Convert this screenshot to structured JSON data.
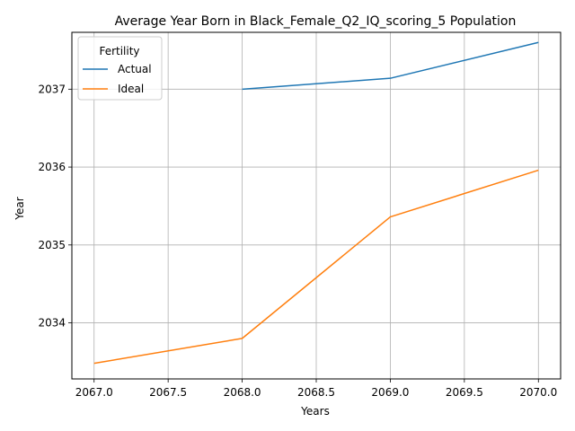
{
  "chart_data": {
    "type": "line",
    "title": "Average Year Born in Black_Female_Q2_IQ_scoring_5 Population",
    "xlabel": "Years",
    "ylabel": "Year",
    "xlim": [
      2066.85,
      2070.15
    ],
    "ylim": [
      2033.28,
      2037.73
    ],
    "x_ticks": [
      2067.0,
      2067.5,
      2068.0,
      2068.5,
      2069.0,
      2069.5,
      2070.0
    ],
    "x_tick_labels": [
      "2067.0",
      "2067.5",
      "2068.0",
      "2068.5",
      "2069.0",
      "2069.5",
      "2070.0"
    ],
    "y_ticks": [
      2034,
      2035,
      2036,
      2037
    ],
    "y_tick_labels": [
      "2034",
      "2035",
      "2036",
      "2037"
    ],
    "grid": true,
    "legend": {
      "title": "Fertility",
      "placement": "top-left"
    },
    "series": [
      {
        "name": "Actual",
        "color": "#1f77b4",
        "x": [
          2068,
          2069,
          2070
        ],
        "values": [
          2037.0,
          2037.14,
          2037.6
        ]
      },
      {
        "name": "Ideal",
        "color": "#ff7f0e",
        "x": [
          2067,
          2068,
          2069,
          2070
        ],
        "values": [
          2033.48,
          2033.8,
          2035.36,
          2035.96
        ]
      }
    ]
  }
}
